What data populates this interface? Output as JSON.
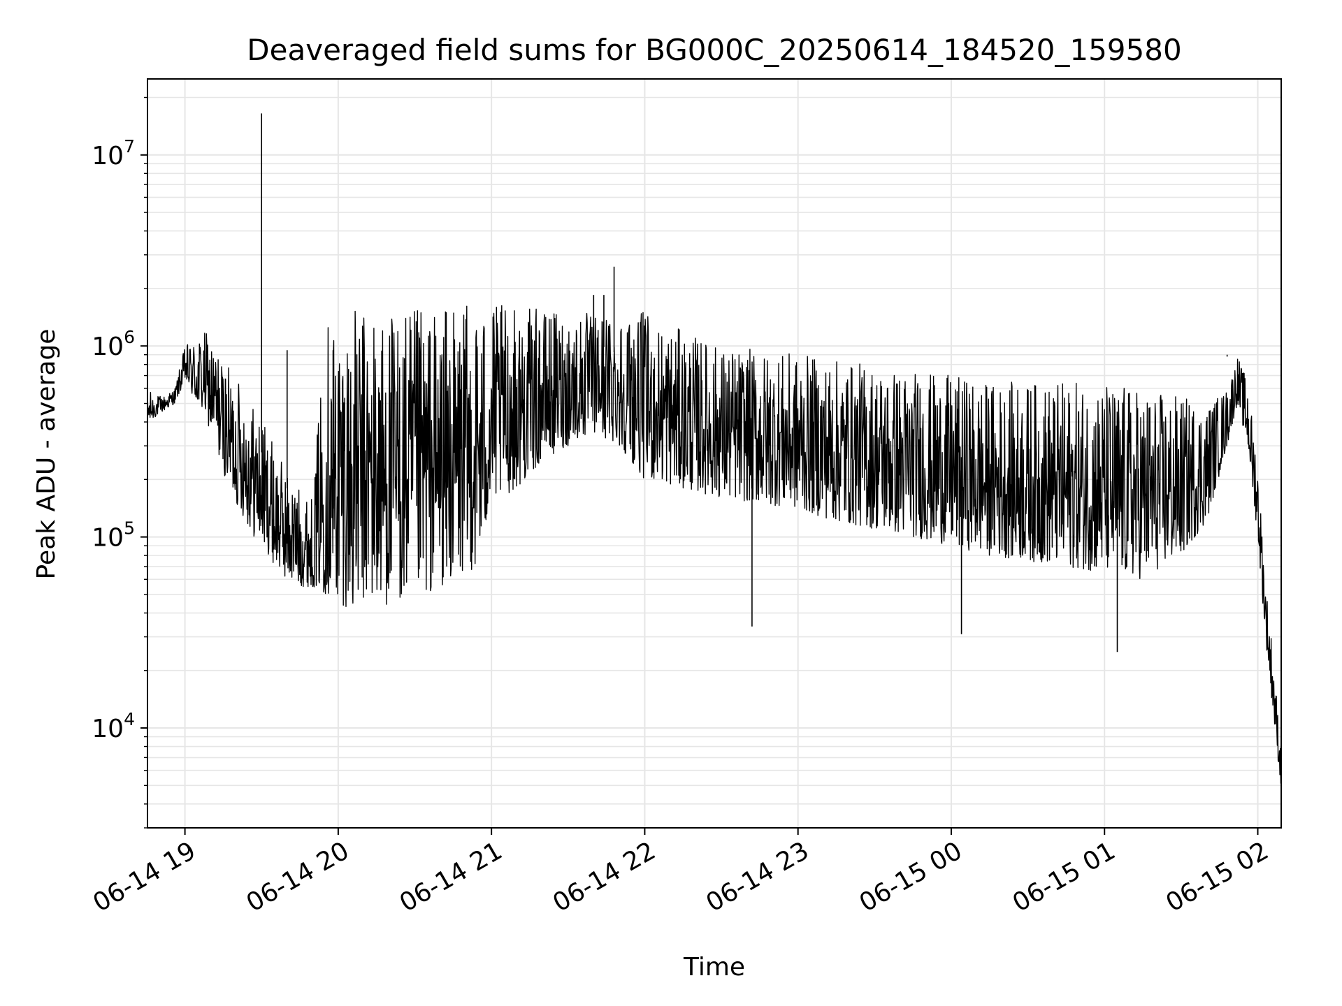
{
  "chart_data": {
    "type": "line",
    "title": "Deaveraged field sums for BG000C_20250614_184520_159580",
    "xlabel": "Time",
    "ylabel": "Peak ADU - average",
    "yscale": "log",
    "xlim": [
      "2025-06-14 18:45:20",
      "2025-06-15 02:09:10"
    ],
    "ylim": [
      3000,
      25000000
    ],
    "grid": true,
    "x_tick_labels": [
      {
        "time": "2025-06-14 19:00",
        "label": "06-14 19"
      },
      {
        "time": "2025-06-14 20:00",
        "label": "06-14 20"
      },
      {
        "time": "2025-06-14 21:00",
        "label": "06-14 21"
      },
      {
        "time": "2025-06-14 22:00",
        "label": "06-14 22"
      },
      {
        "time": "2025-06-14 23:00",
        "label": "06-14 23"
      },
      {
        "time": "2025-06-15 00:00",
        "label": "06-15 00"
      },
      {
        "time": "2025-06-15 01:00",
        "label": "06-15 01"
      },
      {
        "time": "2025-06-15 02:00",
        "label": "06-15 02"
      }
    ],
    "y_tick_labels": [
      {
        "value": 10000,
        "base": "10",
        "exp": "4"
      },
      {
        "value": 100000,
        "base": "10",
        "exp": "5"
      },
      {
        "value": 1000000,
        "base": "10",
        "exp": "6"
      },
      {
        "value": 10000000,
        "base": "10",
        "exp": "7"
      }
    ],
    "line_color": "#000000",
    "grid_color": "#e6e6e6",
    "series": [
      {
        "x": [
          "2025-06-14 18:45:20",
          "2025-06-14 18:48",
          "2025-06-14 18:52",
          "2025-06-14 18:56",
          "2025-06-14 19:00",
          "2025-06-14 19:04",
          "2025-06-14 19:08",
          "2025-06-14 19:12",
          "2025-06-14 19:16",
          "2025-06-14 19:20",
          "2025-06-14 19:24",
          "2025-06-14 19:27",
          "2025-06-14 19:29",
          "2025-06-14 19:31",
          "2025-06-14 19:35",
          "2025-06-14 19:40",
          "2025-06-14 19:45",
          "2025-06-14 19:50",
          "2025-06-14 19:55",
          "2025-06-14 20:00",
          "2025-06-14 20:05",
          "2025-06-14 20:10",
          "2025-06-14 20:15",
          "2025-06-14 20:20",
          "2025-06-14 20:25",
          "2025-06-14 20:30",
          "2025-06-14 20:35",
          "2025-06-14 20:40",
          "2025-06-14 20:45",
          "2025-06-14 20:50",
          "2025-06-14 20:55",
          "2025-06-14 21:00",
          "2025-06-14 21:10",
          "2025-06-14 21:20",
          "2025-06-14 21:30",
          "2025-06-14 21:40",
          "2025-06-14 21:50",
          "2025-06-14 22:00",
          "2025-06-14 22:15",
          "2025-06-14 22:30",
          "2025-06-14 22:45",
          "2025-06-14 23:00",
          "2025-06-14 23:15",
          "2025-06-14 23:30",
          "2025-06-14 23:45",
          "2025-06-15 00:00",
          "2025-06-15 00:15",
          "2025-06-15 00:30",
          "2025-06-15 00:45",
          "2025-06-15 01:00",
          "2025-06-15 01:15",
          "2025-06-15 01:30",
          "2025-06-15 01:40",
          "2025-06-15 01:48",
          "2025-06-15 01:52",
          "2025-06-15 01:56",
          "2025-06-15 02:00",
          "2025-06-15 02:03",
          "2025-06-15 02:06",
          "2025-06-15 02:09"
        ],
        "low": [
          380000,
          420000,
          460000,
          500000,
          650000,
          500000,
          420000,
          300000,
          200000,
          150000,
          120000,
          100000,
          95000,
          90000,
          70000,
          60000,
          55000,
          55000,
          50000,
          45000,
          42000,
          45000,
          45000,
          44000,
          46000,
          48000,
          50000,
          55000,
          60000,
          65000,
          70000,
          150000,
          180000,
          250000,
          300000,
          350000,
          300000,
          200000,
          180000,
          160000,
          150000,
          140000,
          120000,
          110000,
          100000,
          90000,
          80000,
          75000,
          70000,
          65000,
          60000,
          80000,
          120000,
          300000,
          500000,
          300000,
          100000,
          30000,
          12000,
          5000
        ],
        "high": [
          600000,
          550000,
          550000,
          600000,
          1000000,
          1100000,
          1200000,
          1000000,
          800000,
          700000,
          600000,
          500000,
          450000,
          400000,
          300000,
          220000,
          180000,
          160000,
          1500000,
          1550000,
          1550000,
          1550000,
          1550000,
          1550000,
          1550000,
          1550000,
          1600000,
          1600000,
          1600000,
          1650000,
          1650000,
          1650000,
          1600000,
          1550000,
          1500000,
          1500000,
          1550000,
          1500000,
          1200000,
          1000000,
          950000,
          900000,
          850000,
          800000,
          750000,
          700000,
          650000,
          650000,
          650000,
          650000,
          600000,
          550000,
          500000,
          600000,
          900000,
          650000,
          250000,
          60000,
          25000,
          8000
        ]
      }
    ],
    "spikes": [
      {
        "x": "2025-06-14 19:30:00",
        "y": 16500000
      },
      {
        "x": "2025-06-14 19:40:00",
        "y": 950000
      },
      {
        "x": "2025-06-14 19:58:00",
        "y": 950000
      },
      {
        "x": "2025-06-14 21:48:00",
        "y": 2600000
      },
      {
        "x": "2025-06-14 21:40:00",
        "y": 1850000
      },
      {
        "x": "2025-06-14 21:44:00",
        "y": 1850000
      },
      {
        "x": "2025-06-14 22:42:00",
        "y": 34000
      },
      {
        "x": "2025-06-15 00:04:00",
        "y": 31000
      },
      {
        "x": "2025-06-15 01:05:00",
        "y": 25000
      },
      {
        "x": "2025-06-15 01:48:00",
        "y": 880000
      }
    ]
  }
}
